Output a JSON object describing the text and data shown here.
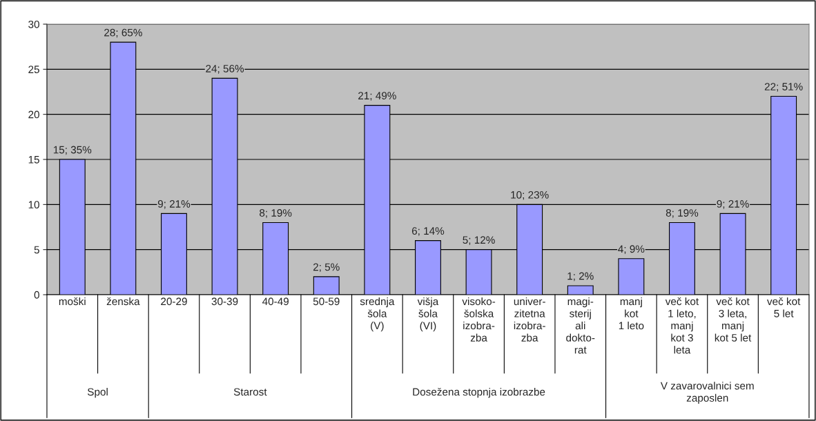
{
  "chart_data": {
    "type": "bar",
    "categories": [
      "moški",
      "ženska",
      "20-29",
      "30-39",
      "40-49",
      "50-59",
      "srednja\nšola\n(V)",
      "višja\nšola\n(VI)",
      "visoko-\nšolska\nizobra-\nzba",
      "univer-\nzitetna\nizobra-\nzba",
      "magi-\nsterij\nali\ndokto-\nrat",
      "manj\nkot\n1 leto",
      "več kot\n1 leto,\nmanj\nkot 3\nleta",
      "več kot\n3 leta,\nmanj\nkot 5 let",
      "več kot\n5 let"
    ],
    "series": [
      {
        "color": "#9999ff",
        "values": [
          15,
          28,
          9,
          24,
          8,
          2,
          21,
          6,
          5,
          10,
          1,
          4,
          8,
          9,
          22
        ],
        "value_labels": [
          "15; 35%",
          "28; 65%",
          "9; 21%",
          "24; 56%",
          "8; 19%",
          "2; 5%",
          "21; 49%",
          "6; 14%",
          "5; 12%",
          "10; 23%",
          "1; 2%",
          "4; 9%",
          "8; 19%",
          "9; 21%",
          "22; 51%"
        ]
      }
    ],
    "annotations": [
      "Spol",
      "Starost",
      "Dosežena stopnja izobrazbe",
      "V zavarovalnici sem\nzaposlen"
    ],
    "ylim": [
      0,
      30
    ],
    "yticks": [
      0,
      5,
      10,
      15,
      20,
      25,
      30
    ],
    "grid": "y"
  }
}
